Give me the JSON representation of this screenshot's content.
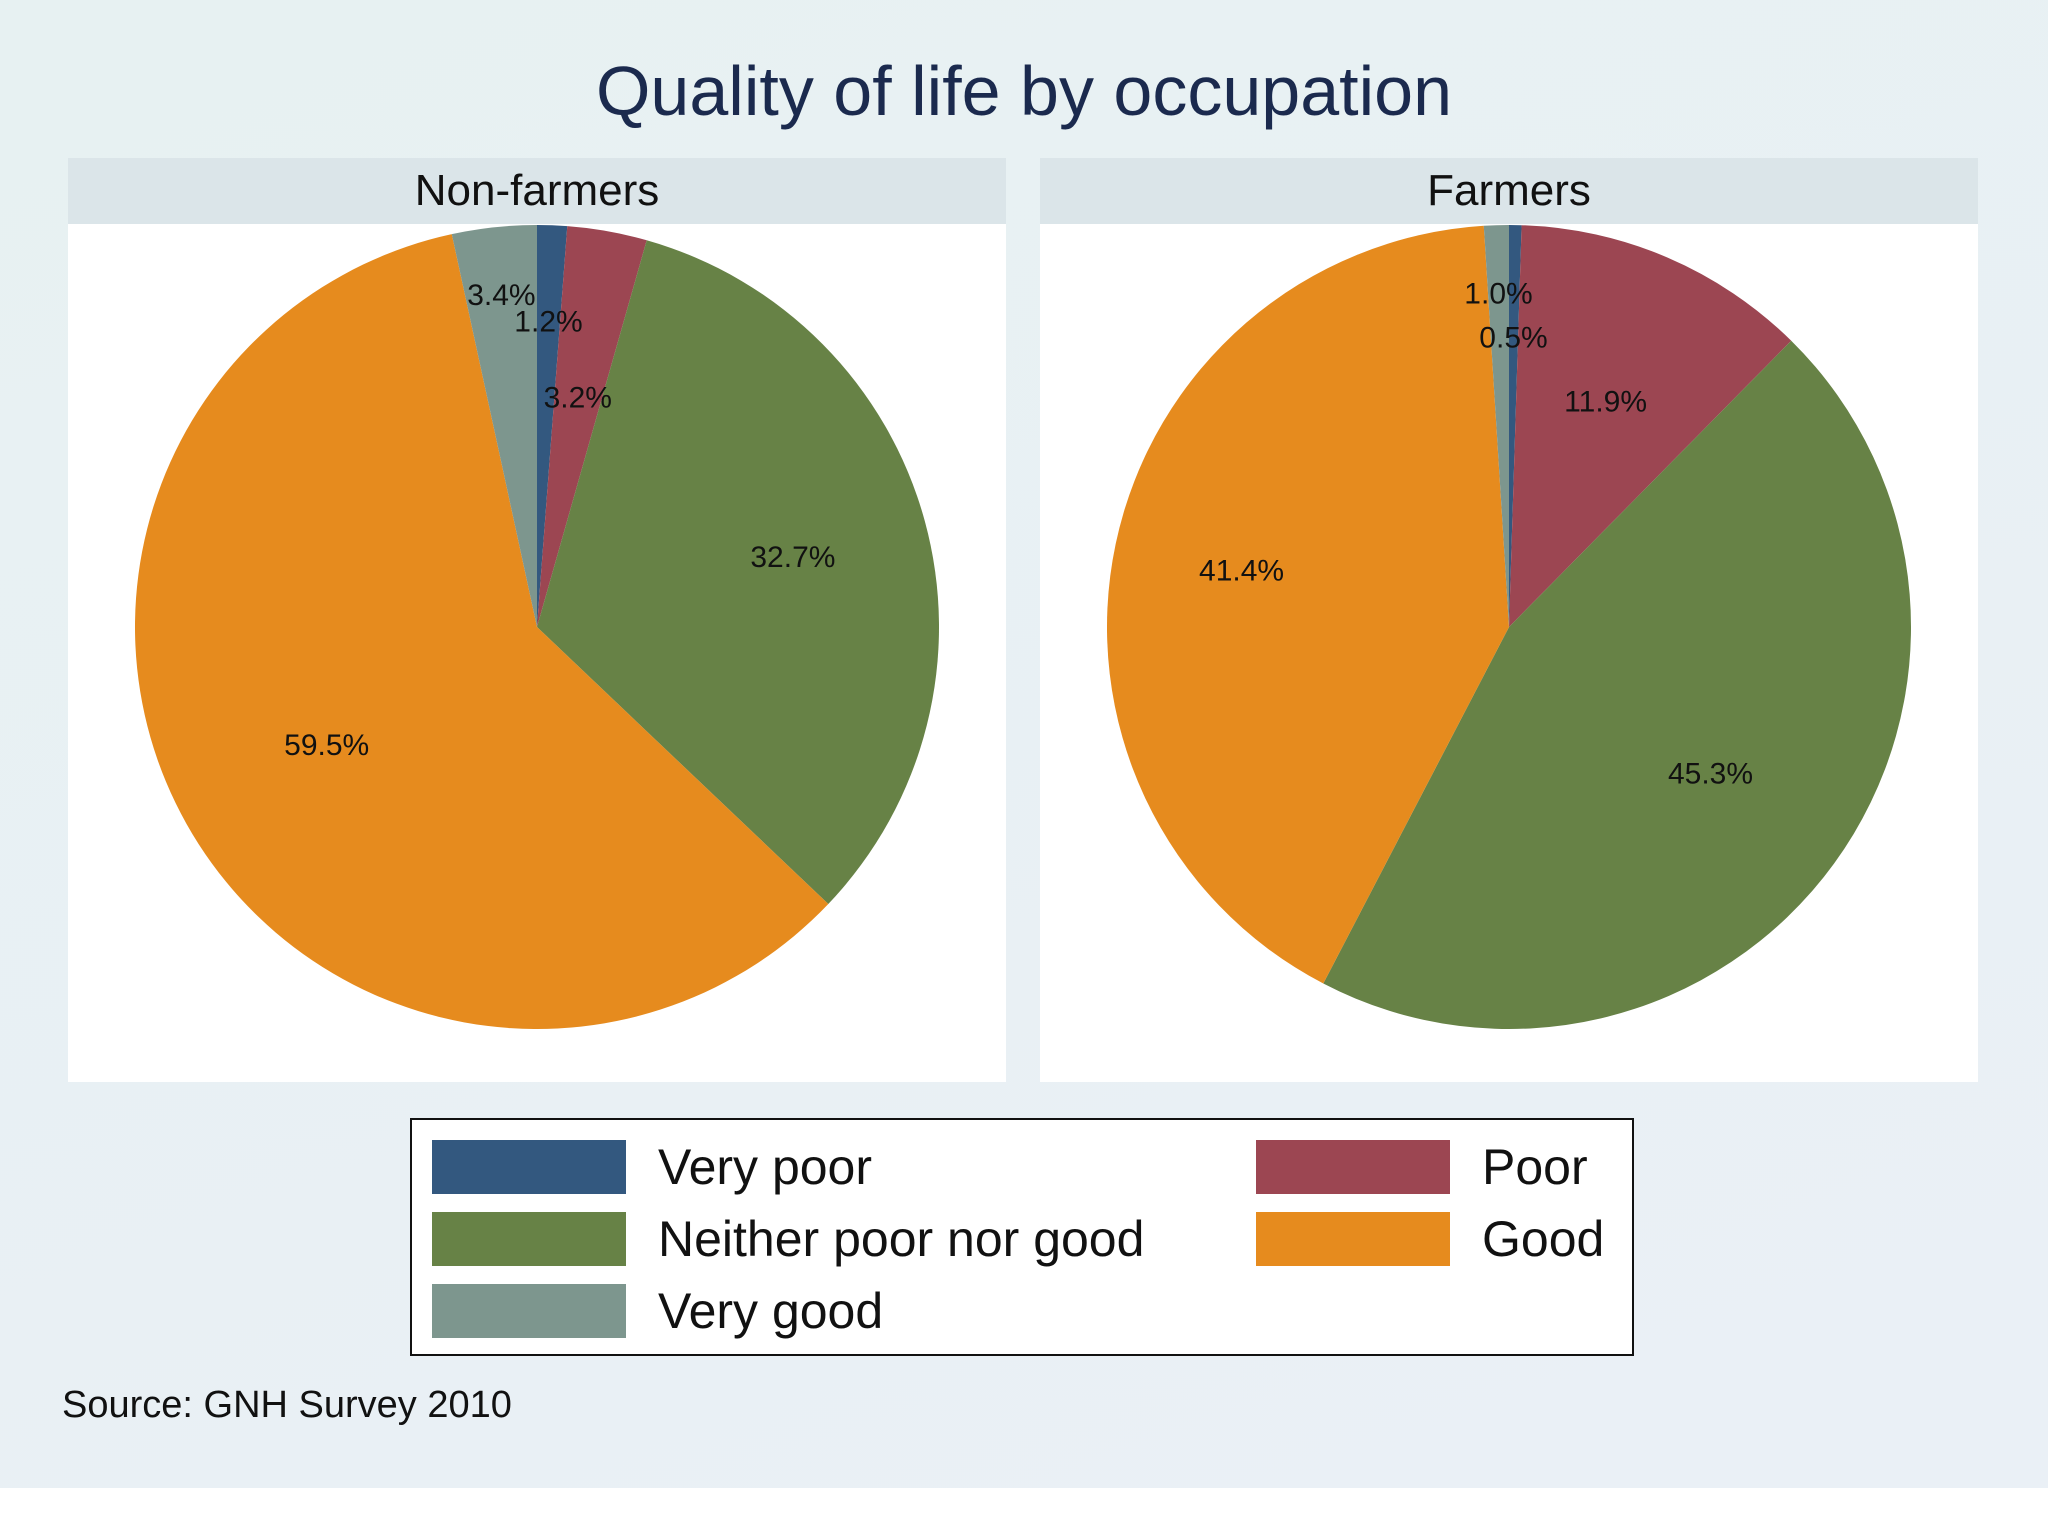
{
  "title": "Quality of life by occupation",
  "source": "Source: GNH Survey 2010",
  "chart_data": [
    {
      "type": "pie",
      "panel": "Non-farmers",
      "categories": [
        "Very poor",
        "Poor",
        "Neither poor nor good",
        "Good",
        "Very good"
      ],
      "values": [
        1.2,
        3.2,
        32.7,
        59.5,
        3.4
      ],
      "labels": [
        "1.2%",
        "3.2%",
        "32.7%",
        "59.5%",
        "3.4%"
      ],
      "start_angle": "12 o'clock",
      "direction": "clockwise"
    },
    {
      "type": "pie",
      "panel": "Farmers",
      "categories": [
        "Very poor",
        "Poor",
        "Neither poor nor good",
        "Good",
        "Very good"
      ],
      "values": [
        0.5,
        11.9,
        45.3,
        41.4,
        1.0
      ],
      "labels": [
        "0.5%",
        "11.9%",
        "45.3%",
        "41.4%",
        "1.0%"
      ],
      "start_angle": "12 o'clock",
      "direction": "clockwise"
    }
  ],
  "legend": {
    "placement": "bottom",
    "items": [
      {
        "label": "Very poor",
        "color": "#33587f"
      },
      {
        "label": "Poor",
        "color": "#9c4652"
      },
      {
        "label": "Neither poor nor good",
        "color": "#678246"
      },
      {
        "label": "Good",
        "color": "#e68b1e"
      },
      {
        "label": "Very good",
        "color": "#7d968e"
      }
    ]
  },
  "colors": [
    "#33587f",
    "#9c4652",
    "#678246",
    "#e68b1e",
    "#7d968e"
  ]
}
